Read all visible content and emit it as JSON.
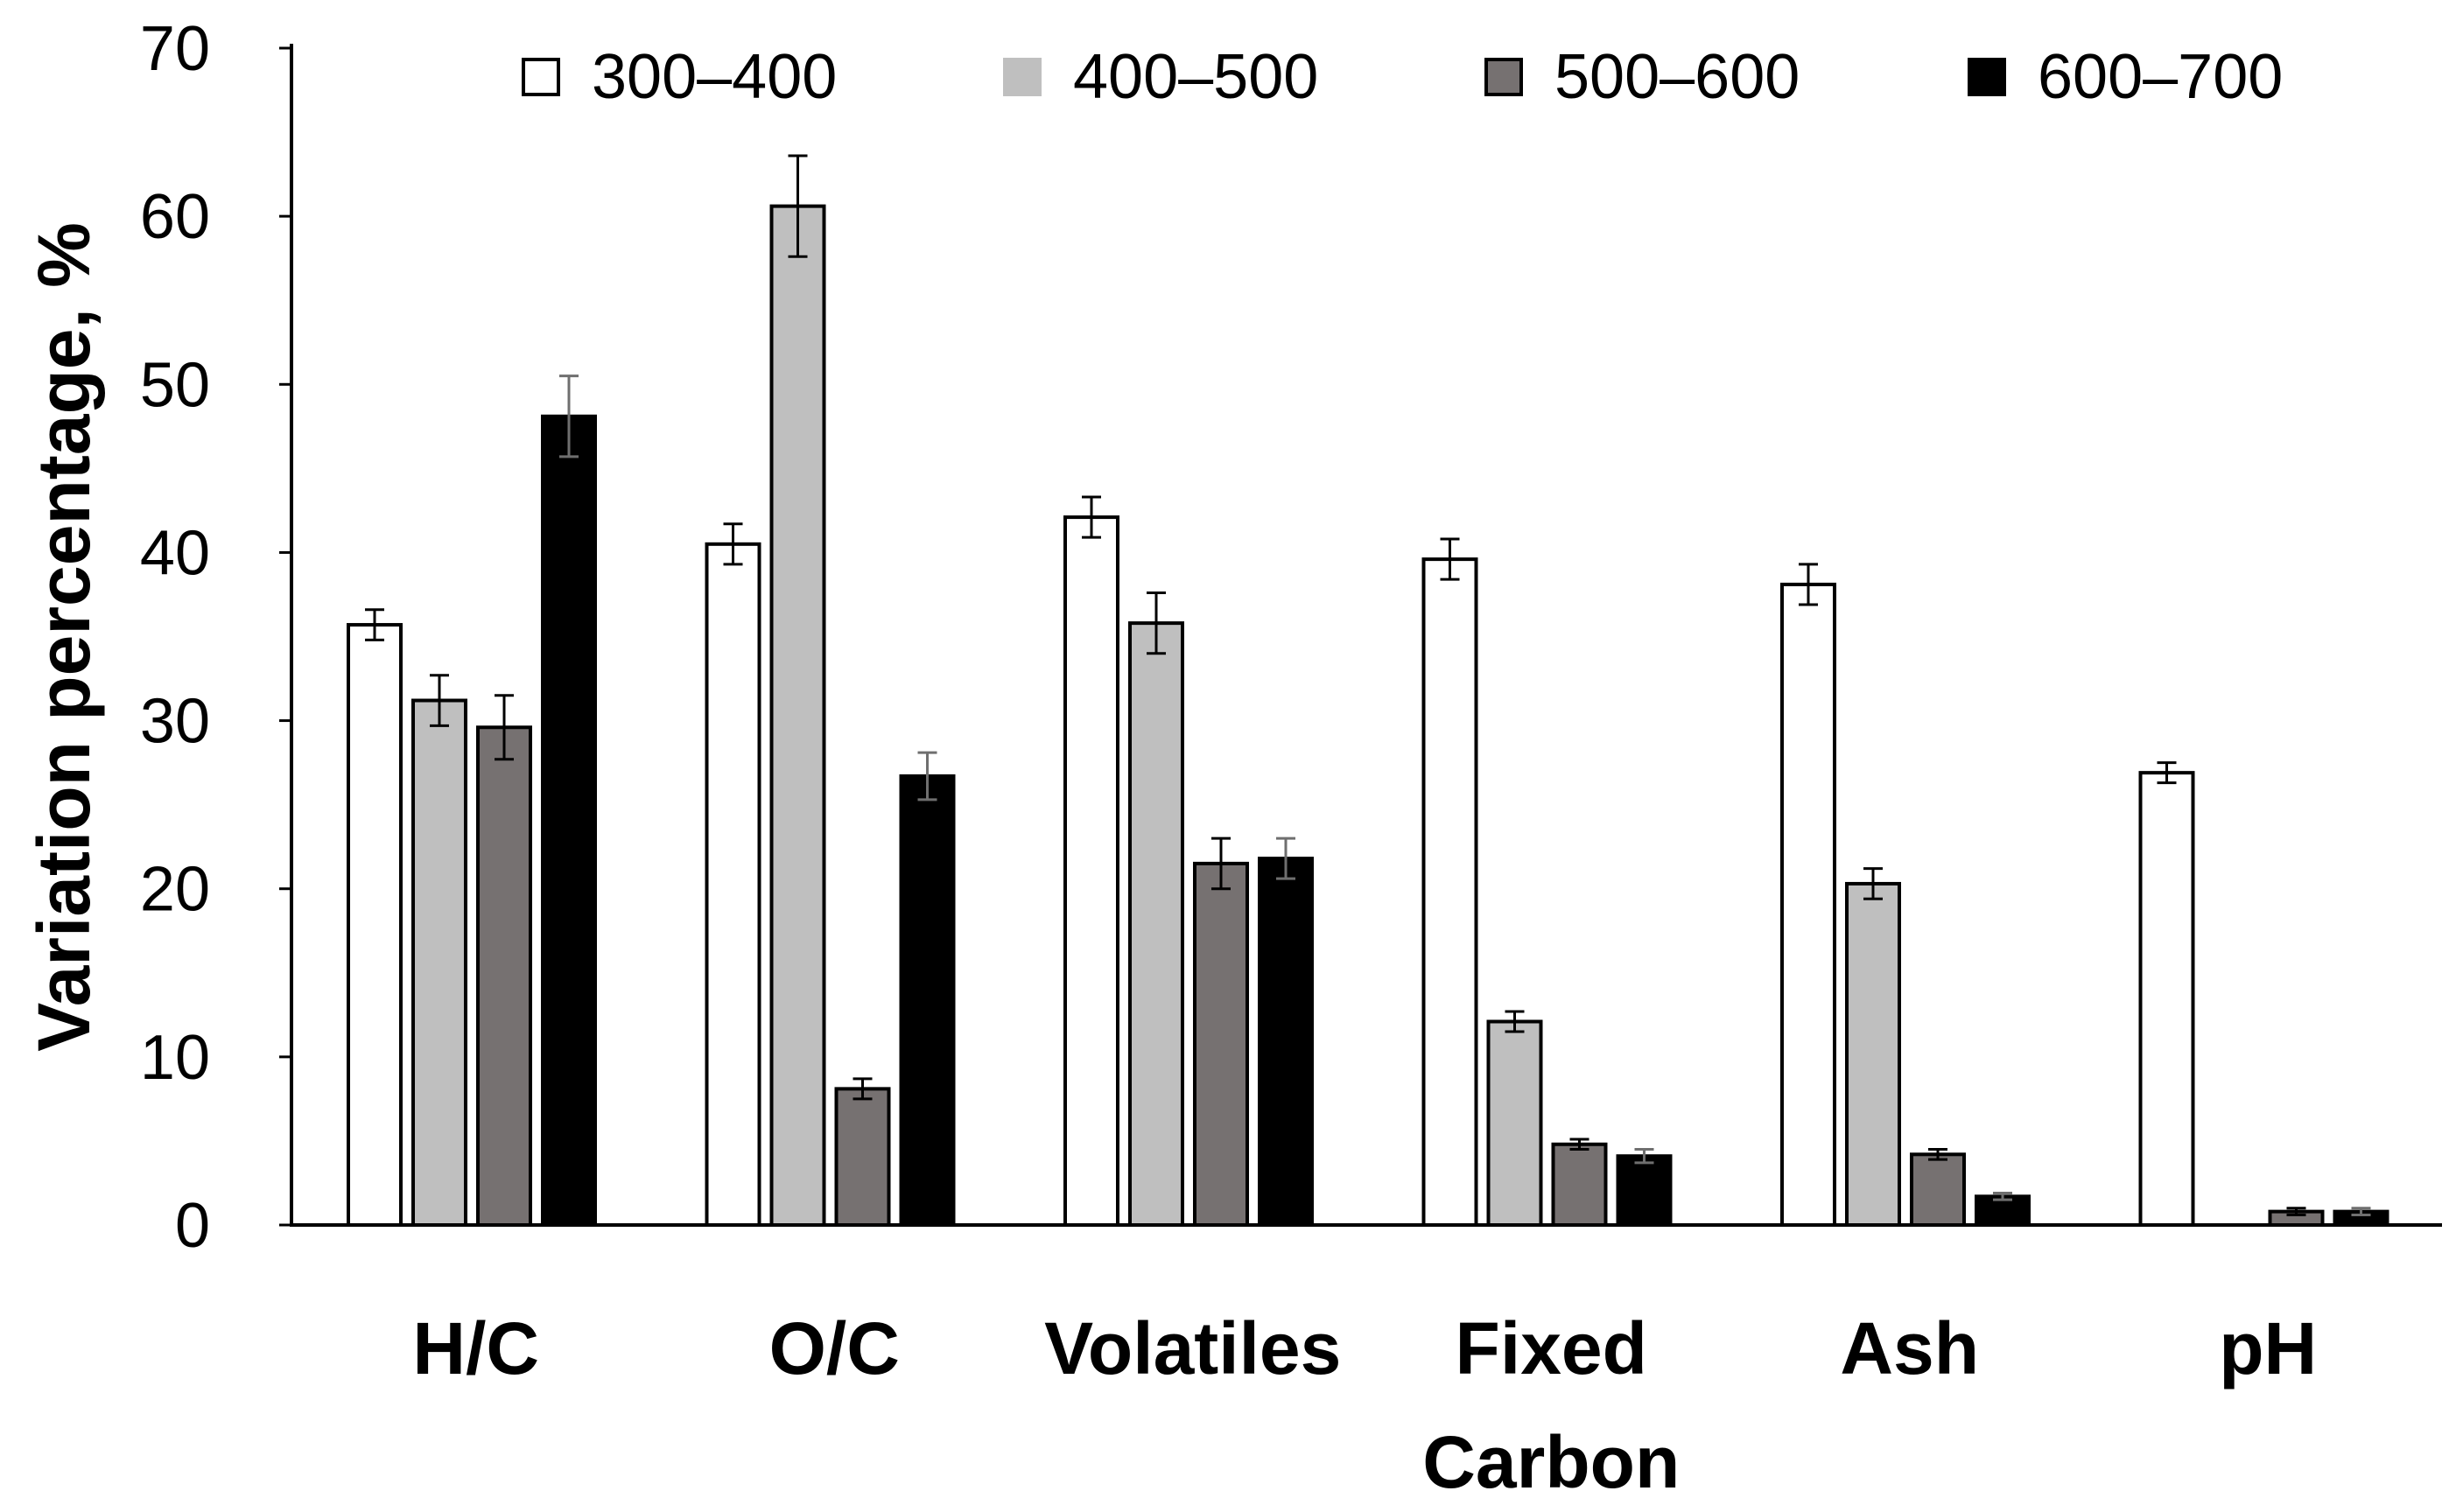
{
  "chart_data": {
    "type": "bar",
    "title": "",
    "xlabel": "",
    "ylabel": "Variation percentage, %",
    "ylim": [
      0,
      70
    ],
    "yticks": [
      0,
      10,
      20,
      30,
      40,
      50,
      60,
      70
    ],
    "grid": false,
    "legend_position": "top",
    "categories": [
      [
        "H/C"
      ],
      [
        "O/C"
      ],
      [
        "Volatiles"
      ],
      [
        "Fixed",
        "Carbon"
      ],
      [
        "Ash"
      ],
      [
        "pH"
      ]
    ],
    "series": [
      {
        "name": "300–400",
        "color": "#ffffff",
        "values": [
          35.7,
          40.5,
          42.1,
          39.6,
          38.1,
          26.9
        ],
        "errors": [
          0.9,
          1.2,
          1.2,
          1.2,
          1.2,
          0.6
        ]
      },
      {
        "name": "400–500",
        "color": "#bfbfbf",
        "values": [
          31.2,
          60.6,
          35.8,
          12.1,
          20.3,
          null
        ],
        "errors": [
          1.5,
          3.0,
          1.8,
          0.6,
          0.9,
          null
        ]
      },
      {
        "name": "500–600",
        "color": "#767171",
        "values": [
          29.6,
          8.1,
          21.5,
          4.8,
          4.2,
          0.8
        ],
        "errors": [
          1.9,
          0.6,
          1.5,
          0.3,
          0.3,
          0.2
        ]
      },
      {
        "name": "600–700",
        "color": "#000000",
        "values": [
          48.1,
          26.7,
          21.8,
          4.1,
          1.7,
          0.8
        ],
        "errors": [
          2.4,
          1.4,
          1.2,
          0.4,
          0.2,
          0.2
        ]
      }
    ]
  }
}
